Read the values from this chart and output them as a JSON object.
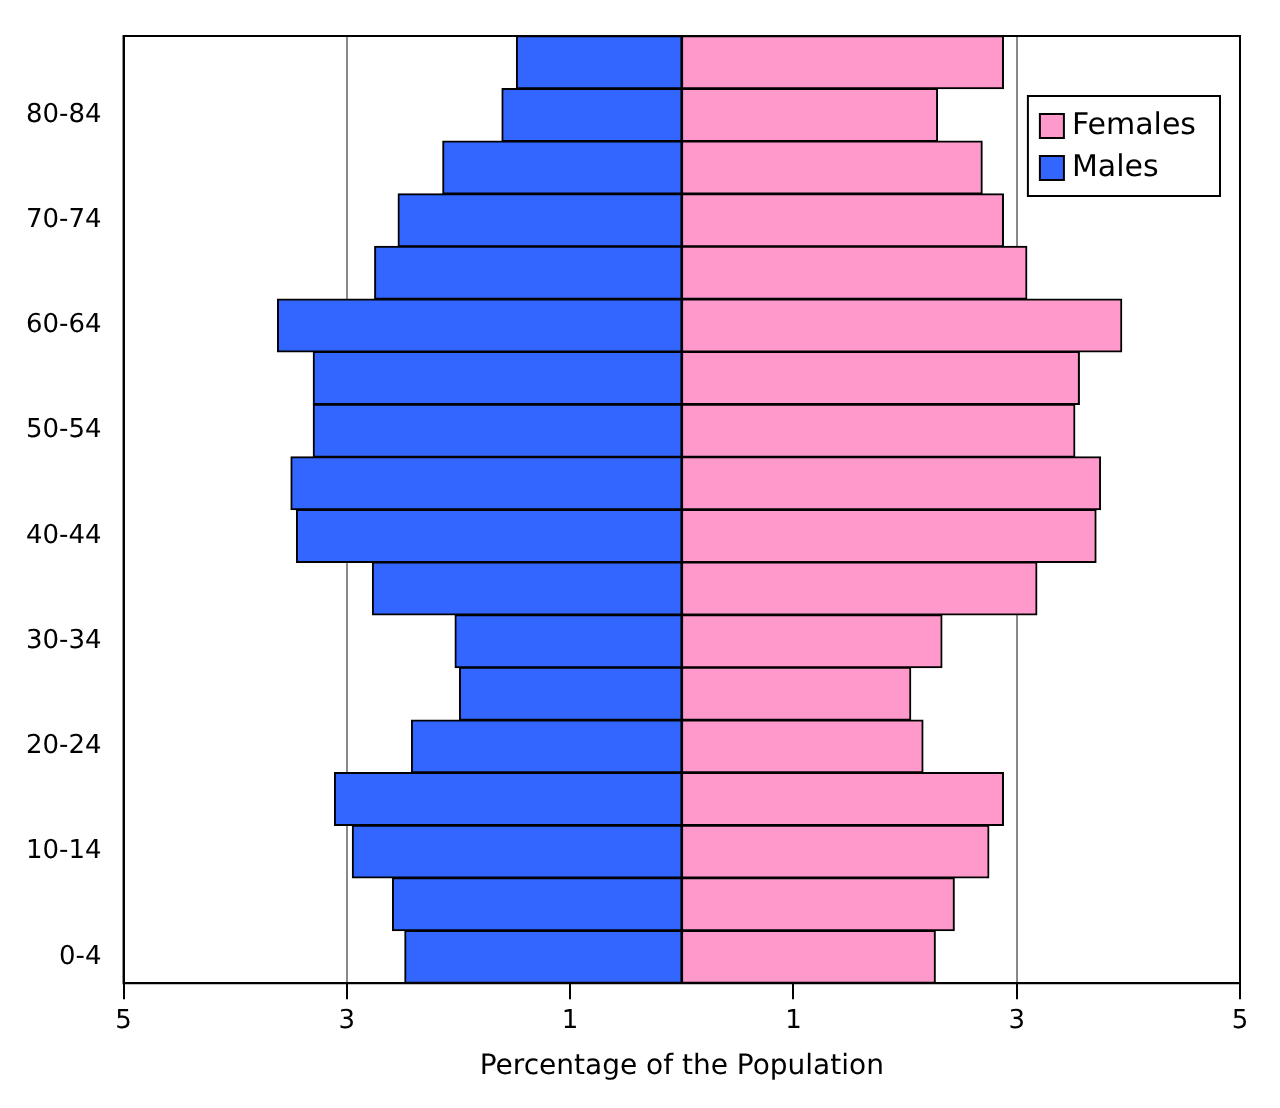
{
  "chart_data": {
    "type": "bar",
    "orientation": "horizontal",
    "stacked": true,
    "xlabel": "Percentage of the Population",
    "categories": [
      null,
      "80-84",
      null,
      "70-74",
      null,
      "60-64",
      null,
      "50-54",
      null,
      "40-44",
      null,
      "30-34",
      null,
      "20-24",
      null,
      "10-14",
      null,
      "0-4"
    ],
    "series": [
      {
        "name": "Females",
        "color": "#ff99cc",
        "values": [
          2.88,
          2.29,
          2.69,
          2.88,
          3.09,
          3.94,
          3.56,
          3.52,
          3.75,
          3.71,
          3.18,
          2.33,
          2.05,
          2.16,
          2.88,
          2.75,
          2.44,
          2.27
        ]
      },
      {
        "name": "Males",
        "color": "#3366ff",
        "values": [
          -1.48,
          -1.61,
          -2.14,
          -2.54,
          -2.75,
          -3.62,
          -3.3,
          -3.3,
          -3.5,
          -3.45,
          -2.77,
          -2.03,
          -1.99,
          -2.42,
          -3.11,
          -2.95,
          -2.59,
          -2.48
        ]
      }
    ],
    "xlim": [
      -5,
      5
    ],
    "xticks": [
      {
        "value": -5,
        "label": "5"
      },
      {
        "value": -3,
        "label": "3"
      },
      {
        "value": -1,
        "label": "1"
      },
      {
        "value": 1,
        "label": "1"
      },
      {
        "value": 3,
        "label": "3"
      },
      {
        "value": 5,
        "label": "5"
      }
    ],
    "grid": "x",
    "legend": "top right"
  }
}
